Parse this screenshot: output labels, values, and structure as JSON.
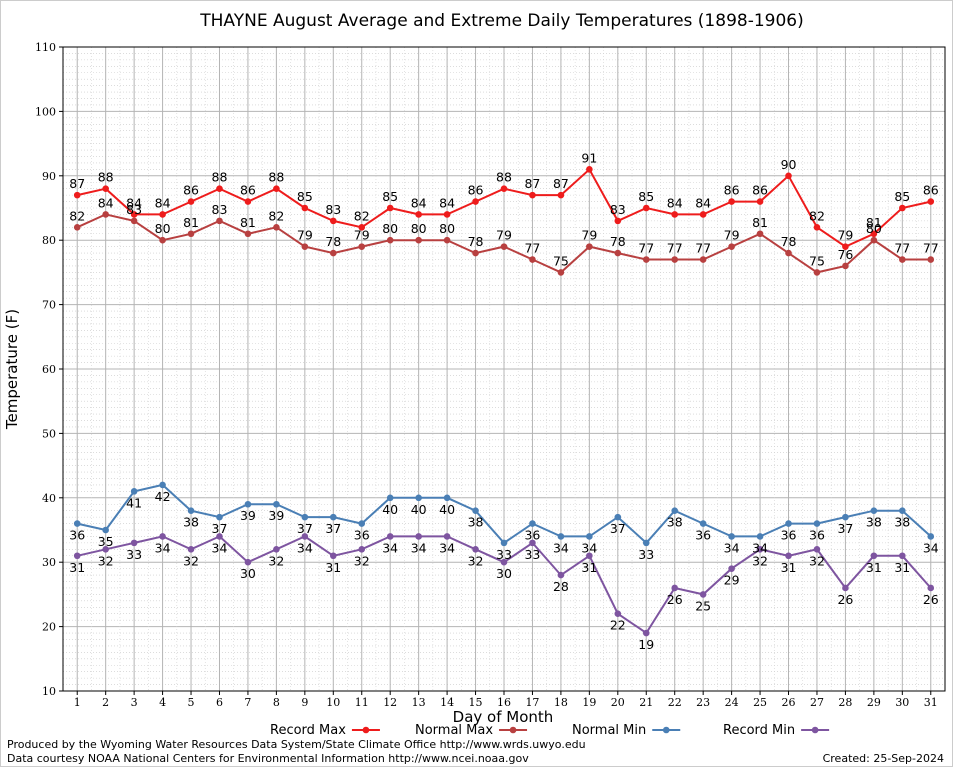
{
  "chart_data": {
    "type": "line",
    "title": "THAYNE August Average and Extreme Daily Temperatures (1898-1906)",
    "xlabel": "Day of Month",
    "ylabel": "Temperature (F)",
    "xlim": [
      0.5,
      31.5
    ],
    "ylim": [
      10,
      110
    ],
    "y_ticks": [
      10,
      20,
      30,
      40,
      50,
      60,
      70,
      80,
      90,
      100,
      110
    ],
    "x": [
      1,
      2,
      3,
      4,
      5,
      6,
      7,
      8,
      9,
      10,
      11,
      12,
      13,
      14,
      15,
      16,
      17,
      18,
      19,
      20,
      21,
      22,
      23,
      24,
      25,
      26,
      27,
      28,
      29,
      30,
      31
    ],
    "grid": true,
    "legend_position": "bottom",
    "series": [
      {
        "name": "Record Max",
        "color": "#ee1c1c",
        "values": [
          87,
          88,
          84,
          84,
          86,
          88,
          86,
          88,
          85,
          83,
          82,
          85,
          84,
          84,
          86,
          88,
          87,
          87,
          91,
          83,
          85,
          84,
          84,
          86,
          86,
          90,
          82,
          79,
          81,
          85,
          86
        ]
      },
      {
        "name": "Normal Max",
        "color": "#b84040",
        "values": [
          82,
          84,
          83,
          80,
          81,
          83,
          81,
          82,
          79,
          78,
          79,
          80,
          80,
          80,
          78,
          79,
          77,
          75,
          79,
          78,
          77,
          77,
          77,
          79,
          81,
          78,
          75,
          76,
          80,
          77,
          77
        ]
      },
      {
        "name": "Normal Min",
        "color": "#4a7fb5",
        "values": [
          36,
          35,
          41,
          42,
          38,
          37,
          39,
          39,
          37,
          37,
          36,
          40,
          40,
          40,
          38,
          33,
          36,
          34,
          34,
          37,
          33,
          38,
          36,
          34,
          34,
          36,
          36,
          37,
          38,
          38,
          34
        ]
      },
      {
        "name": "Record Min",
        "color": "#7e55a0",
        "values": [
          31,
          32,
          33,
          34,
          32,
          34,
          30,
          32,
          34,
          31,
          32,
          34,
          34,
          34,
          32,
          30,
          33,
          28,
          31,
          22,
          19,
          26,
          25,
          29,
          32,
          31,
          32,
          26,
          31,
          31,
          26
        ]
      }
    ]
  },
  "footer": {
    "produced_by": "Produced by the Wyoming Water Resources Data System/State Climate Office http://www.wrds.uwyo.edu",
    "courtesy": "Data courtesy NOAA National Centers for Environmental Information http://www.ncei.noaa.gov",
    "created": "Created:  25-Sep-2024"
  }
}
